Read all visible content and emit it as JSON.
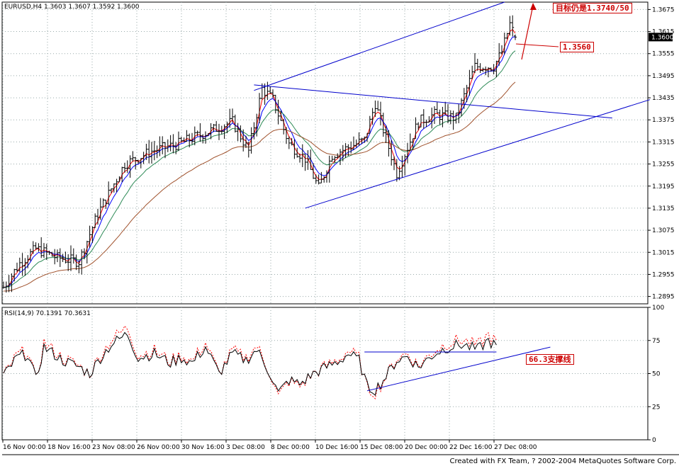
{
  "header": {
    "main_info": "EURUSD,H4  1.3603 1.3607 1.3592 1.3600",
    "rsi_info": "RSI(14,9)  70.1391  70.3631"
  },
  "credit": "Created with FX Team, ? 2002-2004 MetaQuotes Software Corp.",
  "annotations": {
    "target": "目标仍是1.3740/50",
    "level": "1.3560",
    "support": "66.3支撑线"
  },
  "colors": {
    "trendline": "#0000cc",
    "ema_fast": "#ff0000",
    "ema_mid": "#0000ff",
    "ema_slow": "#2e8b57",
    "ema_long": "#a0522d",
    "annotation": "#cc0000",
    "rsi_signal": "#ff0000"
  },
  "chart_data": [
    {
      "type": "bar",
      "title": "EURUSD,H4",
      "ohlc_last": {
        "open": 1.3603,
        "high": 1.3607,
        "low": 1.3592,
        "close": 1.36
      },
      "price_current": 1.36,
      "ylim": [
        1.2875,
        1.3695
      ],
      "y_ticks": [
        "1.3675",
        "1.3615",
        "1.3555",
        "1.3495",
        "1.3435",
        "1.3375",
        "1.3315",
        "1.3255",
        "1.3195",
        "1.3135",
        "1.3075",
        "1.3015",
        "1.2955",
        "1.2895"
      ],
      "x_labels": [
        "16 Nov 00:00",
        "18 Nov 16:00",
        "23 Nov 08:00",
        "26 Nov 00:00",
        "30 Nov 16:00",
        "3 Dec 08:00",
        "8 Dec 00:00",
        "10 Dec 16:00",
        "15 Dec 08:00",
        "20 Dec 00:00",
        "22 Dec 16:00",
        "27 Dec 08:00"
      ],
      "price_anchors": [
        [
          0,
          1.292
        ],
        [
          6,
          1.2985
        ],
        [
          12,
          1.3025
        ],
        [
          20,
          1.3
        ],
        [
          28,
          1.299
        ],
        [
          35,
          1.312
        ],
        [
          45,
          1.3255
        ],
        [
          55,
          1.329
        ],
        [
          65,
          1.331
        ],
        [
          75,
          1.334
        ],
        [
          85,
          1.337
        ],
        [
          91,
          1.329
        ],
        [
          96,
          1.346
        ],
        [
          100,
          1.343
        ],
        [
          106,
          1.331
        ],
        [
          112,
          1.327
        ],
        [
          117,
          1.319
        ],
        [
          122,
          1.328
        ],
        [
          128,
          1.33
        ],
        [
          134,
          1.332
        ],
        [
          138,
          1.342
        ],
        [
          143,
          1.33
        ],
        [
          146,
          1.323
        ],
        [
          150,
          1.33
        ],
        [
          154,
          1.337
        ],
        [
          160,
          1.339
        ],
        [
          168,
          1.338
        ],
        [
          175,
          1.352
        ],
        [
          182,
          1.352
        ],
        [
          185,
          1.356
        ],
        [
          188,
          1.3635
        ],
        [
          190,
          1.36
        ]
      ],
      "series": [
        {
          "name": "EMA fast",
          "color": "#ff0000",
          "lag": 3
        },
        {
          "name": "EMA mid",
          "color": "#0000ff",
          "lag": 6
        },
        {
          "name": "EMA slow",
          "color": "#2e8b57",
          "lag": 14
        },
        {
          "name": "EMA long",
          "color": "#a0522d",
          "lag": 36
        }
      ],
      "trendlines": [
        {
          "from": [
            93,
            1.3455
          ],
          "to": [
            186,
            1.3695
          ]
        },
        {
          "from": [
            93,
            1.347
          ],
          "to": [
            226,
            1.338
          ]
        },
        {
          "from": [
            112,
            1.3135
          ],
          "to": [
            240,
            1.343
          ]
        }
      ]
    },
    {
      "type": "line",
      "title": "RSI(14,9)",
      "values_last": [
        70.1391,
        70.3631
      ],
      "ylim": [
        0,
        100
      ],
      "y_ticks": [
        "100",
        "75",
        "50",
        "25",
        "0"
      ],
      "rsi_anchors": [
        [
          0,
          48
        ],
        [
          5,
          62
        ],
        [
          9,
          65
        ],
        [
          12,
          45
        ],
        [
          15,
          70
        ],
        [
          22,
          60
        ],
        [
          28,
          55
        ],
        [
          32,
          50
        ],
        [
          36,
          62
        ],
        [
          40,
          72
        ],
        [
          46,
          80
        ],
        [
          50,
          62
        ],
        [
          56,
          65
        ],
        [
          62,
          58
        ],
        [
          66,
          62
        ],
        [
          70,
          58
        ],
        [
          75,
          70
        ],
        [
          80,
          50
        ],
        [
          85,
          65
        ],
        [
          90,
          60
        ],
        [
          94,
          68
        ],
        [
          99,
          50
        ],
        [
          102,
          35
        ],
        [
          106,
          45
        ],
        [
          110,
          42
        ],
        [
          115,
          50
        ],
        [
          120,
          55
        ],
        [
          125,
          60
        ],
        [
          128,
          65
        ],
        [
          132,
          60
        ],
        [
          135,
          40
        ],
        [
          138,
          38
        ],
        [
          141,
          45
        ],
        [
          146,
          60
        ],
        [
          150,
          63
        ],
        [
          154,
          55
        ],
        [
          160,
          65
        ],
        [
          165,
          70
        ],
        [
          170,
          72
        ],
        [
          176,
          68
        ],
        [
          180,
          75
        ],
        [
          183,
          70
        ]
      ],
      "trendlines": [
        {
          "from": [
            134,
            66.3
          ],
          "to": [
            183,
            66.3
          ]
        },
        {
          "from": [
            135,
            37
          ],
          "to": [
            203,
            70
          ]
        }
      ]
    }
  ]
}
